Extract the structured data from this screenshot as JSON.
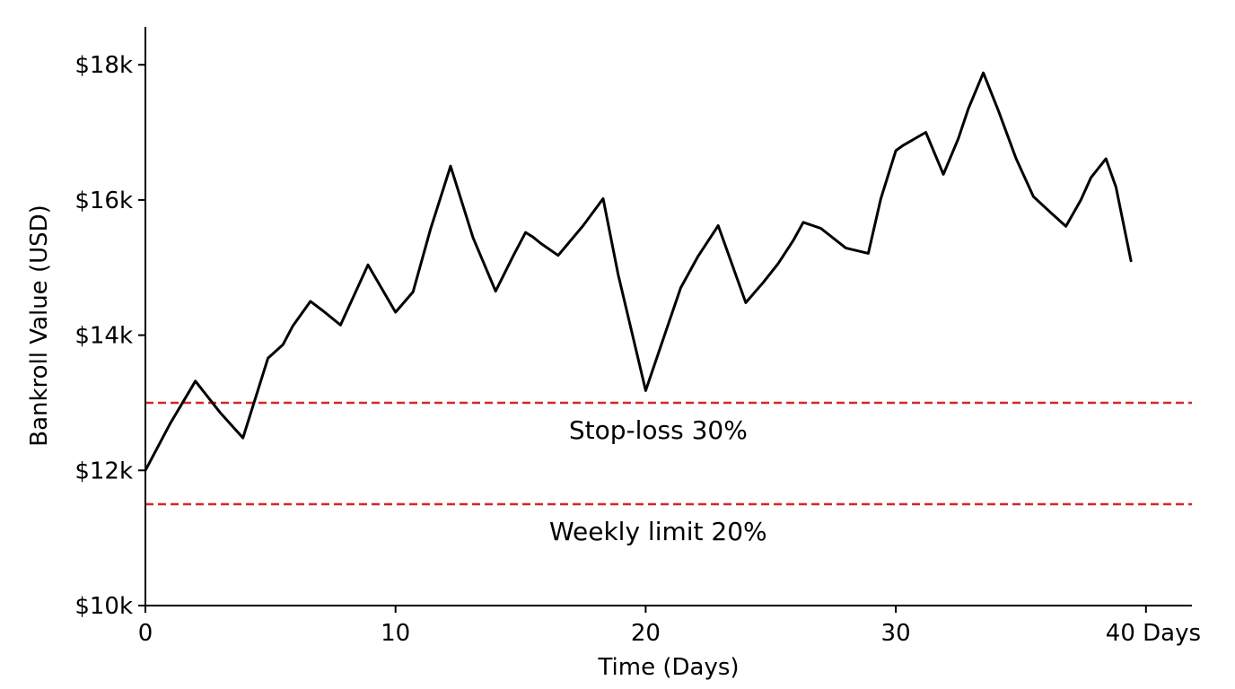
{
  "chart_data": {
    "type": "line",
    "title": "",
    "xlabel": "Time (Days)",
    "ylabel": "Bankroll Value (USD)",
    "xlim": [
      0,
      42
    ],
    "ylim": [
      10000,
      18500
    ],
    "x_ticks": [
      {
        "value": 0,
        "label": "0"
      },
      {
        "value": 10,
        "label": "10"
      },
      {
        "value": 20,
        "label": "20"
      },
      {
        "value": 30,
        "label": "30"
      },
      {
        "value": 40,
        "label": "40 Days"
      }
    ],
    "y_ticks": [
      {
        "value": 10000,
        "label": "$10k"
      },
      {
        "value": 12000,
        "label": "$12k"
      },
      {
        "value": 14000,
        "label": "$14k"
      },
      {
        "value": 16000,
        "label": "$16k"
      },
      {
        "value": 18000,
        "label": "$18k"
      }
    ],
    "grid": false,
    "series": [
      {
        "color": "#000000",
        "x": [
          0,
          1,
          2,
          3,
          3.9,
          4.9,
          5.5,
          5.9,
          6.6,
          7.1,
          7.8,
          8.9,
          10,
          10.7,
          11.4,
          12.2,
          13.1,
          14,
          14.7,
          15.2,
          15.5,
          15.8,
          16.5,
          17.5,
          18.3,
          18.9,
          20,
          20.8,
          21.4,
          22.1,
          22.9,
          24,
          24.7,
          25.3,
          25.9,
          26.3,
          27,
          28,
          28.9,
          29.4,
          30,
          30.3,
          31.2,
          31.9,
          32.5,
          32.9,
          33.5,
          34.1,
          34.8,
          35.5,
          36.2,
          36.8,
          37.4,
          37.8,
          38.4,
          38.8,
          39.4
        ],
        "y": [
          12000,
          12700,
          13320,
          12850,
          12480,
          13660,
          13860,
          14140,
          14500,
          14360,
          14150,
          15040,
          14340,
          14640,
          15570,
          16500,
          15440,
          14650,
          15170,
          15520,
          15450,
          15360,
          15180,
          15620,
          16020,
          14900,
          13180,
          14050,
          14700,
          15170,
          15620,
          14480,
          14780,
          15060,
          15400,
          15670,
          15580,
          15290,
          15210,
          16020,
          16730,
          16810,
          17000,
          16380,
          16910,
          17350,
          17880,
          17320,
          16620,
          16050,
          15810,
          15610,
          16000,
          16330,
          16610,
          16190,
          15100
        ]
      }
    ],
    "reference_lines": [
      {
        "y": 13000,
        "label": "Stop-loss 30%",
        "color": "#d62728",
        "label_x": 20.5
      },
      {
        "y": 11500,
        "label": "Weekly limit 20%",
        "color": "#d62728",
        "label_x": 20.5
      }
    ]
  }
}
